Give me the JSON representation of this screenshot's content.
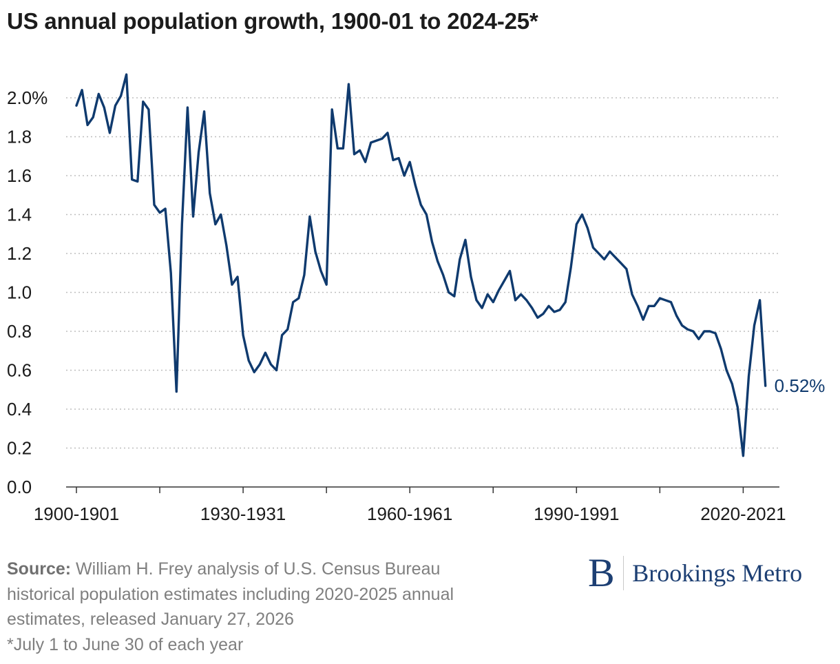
{
  "title": "US annual population growth, 1900-01 to 2024-25*",
  "source": {
    "label": "Source:",
    "line1": "William H. Frey analysis of U.S. Census Bureau",
    "line2": "historical population estimates including 2020-2025 annual",
    "line3": "estimates, released January 27, 2026",
    "note": "*July 1 to June 30 of each year"
  },
  "logo": {
    "mark": "B",
    "text": "Brookings Metro"
  },
  "colors": {
    "line": "#0f3a6e",
    "grid": "#bdbdbd",
    "axis": "#333333",
    "brand": "#1d3f73"
  },
  "chart_data": {
    "type": "line",
    "title": "US annual population growth, 1900-01 to 2024-25*",
    "xlabel": "",
    "ylabel": "",
    "ylim": [
      0,
      2.0
    ],
    "y_ticks": [
      {
        "value": 0.0,
        "label": "0.0"
      },
      {
        "value": 0.2,
        "label": "0.2"
      },
      {
        "value": 0.4,
        "label": "0.4"
      },
      {
        "value": 0.6,
        "label": "0.6"
      },
      {
        "value": 0.8,
        "label": "0.8"
      },
      {
        "value": 1.0,
        "label": "1.0"
      },
      {
        "value": 1.2,
        "label": "1.2"
      },
      {
        "value": 1.4,
        "label": "1.4"
      },
      {
        "value": 1.6,
        "label": "1.6"
      },
      {
        "value": 1.8,
        "label": "1.8"
      },
      {
        "value": 2.0,
        "label": "2.0%"
      }
    ],
    "x_tick_years": [
      1900,
      1915,
      1930,
      1945,
      1960,
      1975,
      1990,
      2005,
      2020
    ],
    "x_tick_labels": [
      {
        "year": 1900,
        "label": "1900-1901"
      },
      {
        "year": 1930,
        "label": "1930-1931"
      },
      {
        "year": 1960,
        "label": "1960-1961"
      },
      {
        "year": 1990,
        "label": "1990-1991"
      },
      {
        "year": 2020,
        "label": "2020-2021"
      }
    ],
    "grid": true,
    "end_label": "0.52%",
    "series": [
      {
        "start_year": 1900,
        "values": [
          1.96,
          2.04,
          1.86,
          1.9,
          2.02,
          1.95,
          1.82,
          1.96,
          2.01,
          2.12,
          1.58,
          1.57,
          1.98,
          1.94,
          1.45,
          1.41,
          1.43,
          1.1,
          0.49,
          1.35,
          1.95,
          1.39,
          1.72,
          1.93,
          1.51,
          1.35,
          1.4,
          1.24,
          1.04,
          1.08,
          0.78,
          0.65,
          0.59,
          0.63,
          0.69,
          0.63,
          0.6,
          0.78,
          0.81,
          0.95,
          0.97,
          1.09,
          1.39,
          1.21,
          1.11,
          1.04,
          1.94,
          1.74,
          1.74,
          2.07,
          1.71,
          1.73,
          1.67,
          1.77,
          1.78,
          1.79,
          1.82,
          1.68,
          1.69,
          1.6,
          1.67,
          1.55,
          1.45,
          1.4,
          1.26,
          1.16,
          1.09,
          1.0,
          0.98,
          1.17,
          1.27,
          1.08,
          0.96,
          0.92,
          0.99,
          0.95,
          1.01,
          1.06,
          1.11,
          0.96,
          0.99,
          0.96,
          0.92,
          0.87,
          0.89,
          0.93,
          0.9,
          0.91,
          0.95,
          1.13,
          1.35,
          1.4,
          1.33,
          1.23,
          1.2,
          1.17,
          1.21,
          1.18,
          1.15,
          1.12,
          0.99,
          0.93,
          0.86,
          0.93,
          0.93,
          0.97,
          0.96,
          0.95,
          0.88,
          0.83,
          0.81,
          0.8,
          0.76,
          0.8,
          0.8,
          0.79,
          0.71,
          0.6,
          0.53,
          0.41,
          0.16,
          0.57,
          0.83,
          0.96,
          0.52
        ]
      }
    ]
  }
}
